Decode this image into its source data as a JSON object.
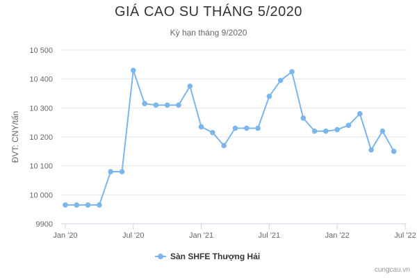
{
  "chart_data": {
    "type": "line",
    "title": "GIÁ CAO SU THÁNG 5/2020",
    "subtitle": "Kỳ hạn tháng 9/2020",
    "ylabel": "ĐVT: CNY/tấn",
    "xlabel": "",
    "ylim": [
      9900,
      10500
    ],
    "yticks": [
      9900,
      10000,
      10100,
      10200,
      10300,
      10400,
      10500
    ],
    "ytick_labels": [
      "9900",
      "10 000",
      "10 100",
      "10 200",
      "10 300",
      "10 400",
      "10 500"
    ],
    "xticks": [
      {
        "label": "Jan '20",
        "x": "2020-01"
      },
      {
        "label": "Jul '20",
        "x": "2020-07"
      },
      {
        "label": "Jan '21",
        "x": "2021-01"
      },
      {
        "label": "Jul '21",
        "x": "2021-07"
      },
      {
        "label": "Jan '22",
        "x": "2022-01"
      },
      {
        "label": "Jul '22",
        "x": "2022-07"
      }
    ],
    "x": [
      "2020-01",
      "2020-02",
      "2020-03",
      "2020-04",
      "2020-05",
      "2020-06",
      "2020-07",
      "2020-08",
      "2020-09",
      "2020-10",
      "2020-11",
      "2020-12",
      "2021-01",
      "2021-02",
      "2021-03",
      "2021-04",
      "2021-05",
      "2021-06",
      "2021-07",
      "2021-08",
      "2021-09",
      "2021-10",
      "2021-11",
      "2021-12",
      "2022-01",
      "2022-02",
      "2022-03",
      "2022-04",
      "2022-05",
      "2022-06"
    ],
    "series": [
      {
        "name": "Sàn SHFE Thượng Hải",
        "color": "#7cb5ec",
        "values": [
          9965,
          9965,
          9965,
          9965,
          10080,
          10080,
          10430,
          10315,
          10310,
          10310,
          10310,
          10375,
          10235,
          10215,
          10170,
          10230,
          10230,
          10230,
          10340,
          10395,
          10425,
          10265,
          10220,
          10220,
          10225,
          10240,
          10280,
          10155,
          10220,
          10150
        ]
      }
    ],
    "grid": true,
    "legend_position": "bottom-center"
  },
  "credit": "cungcau.vn"
}
